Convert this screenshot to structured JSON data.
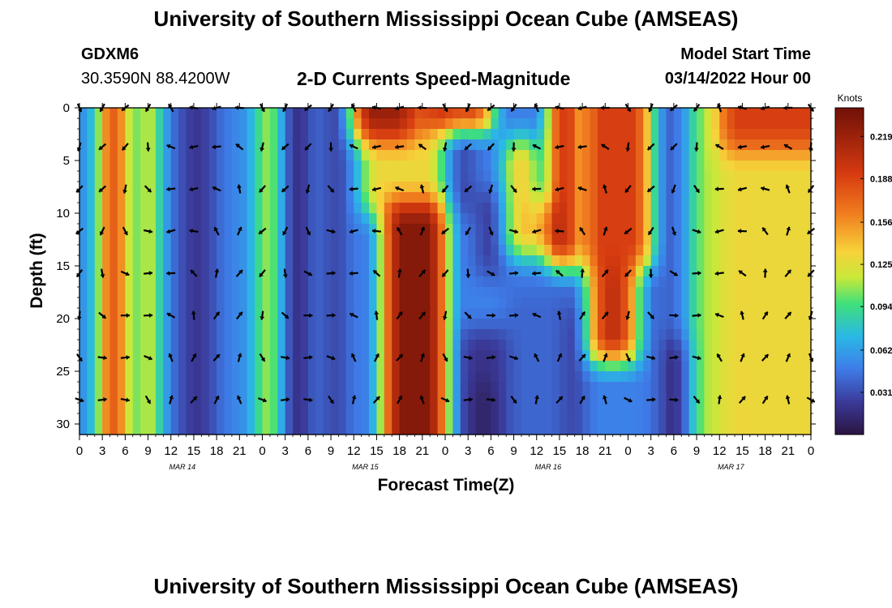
{
  "header": {
    "title": "University of Southern Mississippi Ocean Cube (AMSEAS)",
    "station": "GDXM6",
    "coords": "30.3590N  88.4200W",
    "subtitle": "2-D Currents Speed-Magnitude",
    "model_start_label": "Model Start Time",
    "model_start_value": "03/14/2022 Hour 00"
  },
  "footer": {
    "title": "University of Southern Mississippi Ocean Cube (AMSEAS)"
  },
  "chart_data": {
    "type": "heatmap",
    "title": "2-D Currents Speed-Magnitude",
    "xlabel": "Forecast Time(Z)",
    "ylabel": "Depth (ft)",
    "x_ticks": [
      "0",
      "3",
      "6",
      "9",
      "12",
      "15",
      "18",
      "21",
      "0",
      "3",
      "6",
      "9",
      "12",
      "15",
      "18",
      "21",
      "0",
      "3",
      "6",
      "9",
      "12",
      "15",
      "18",
      "21",
      "0",
      "3",
      "6",
      "9",
      "12",
      "15",
      "18",
      "21",
      "0"
    ],
    "date_labels": [
      "MAR 14",
      "MAR 15",
      "MAR 16",
      "MAR 17"
    ],
    "y_ticks": [
      "0",
      "5",
      "10",
      "15",
      "20",
      "25",
      "30"
    ],
    "y_tick_values": [
      0,
      5,
      10,
      15,
      20,
      25,
      30
    ],
    "ylim": [
      0,
      31
    ],
    "hours_range": [
      0,
      96
    ],
    "colorbar": {
      "label": "Knots",
      "ticks": [
        "0.219",
        "0.188",
        "0.156",
        "0.125",
        "0.094",
        "0.062",
        "0.031"
      ],
      "tick_values": [
        0.219,
        0.188,
        0.156,
        0.125,
        0.094,
        0.062,
        0.031
      ],
      "range": [
        0.0,
        0.24
      ]
    },
    "regions": [
      {
        "h": [
          3.5,
          6
        ],
        "d": [
          0,
          31
        ],
        "v": 0.21
      },
      {
        "h": [
          0,
          2
        ],
        "d": [
          0,
          31
        ],
        "v": 0.06
      },
      {
        "h": [
          8.5,
          9.5
        ],
        "d": [
          0,
          31
        ],
        "v": 0.16
      },
      {
        "h": [
          13,
          18
        ],
        "d": [
          0,
          31
        ],
        "v": 0.025
      },
      {
        "h": [
          14.5,
          16
        ],
        "d": [
          0,
          31
        ],
        "v": 0.02
      },
      {
        "h": [
          22,
          24
        ],
        "d": [
          0,
          31
        ],
        "v": 0.07
      },
      {
        "h": [
          24,
          26
        ],
        "d": [
          0,
          31
        ],
        "v": 0.14
      },
      {
        "h": [
          27.5,
          29.5
        ],
        "d": [
          0,
          31
        ],
        "v": 0.012
      },
      {
        "h": [
          32,
          35
        ],
        "d": [
          0,
          31
        ],
        "v": 0.025
      },
      {
        "h": [
          37,
          48
        ],
        "d": [
          0,
          10
        ],
        "v": 0.13
      },
      {
        "h": [
          36,
          44
        ],
        "d": [
          0,
          3
        ],
        "v": 0.22
      },
      {
        "h": [
          40,
          48
        ],
        "d": [
          9,
          31
        ],
        "v": 0.23
      },
      {
        "h": [
          45,
          54
        ],
        "d": [
          0,
          2
        ],
        "v": 0.21
      },
      {
        "h": [
          48,
          52
        ],
        "d": [
          2,
          10
        ],
        "v": 0.03
      },
      {
        "h": [
          52,
          56
        ],
        "d": [
          8,
          16
        ],
        "v": 0.025
      },
      {
        "h": [
          50,
          58
        ],
        "d": [
          21,
          31
        ],
        "v": 0.02
      },
      {
        "h": [
          52.5,
          54
        ],
        "d": [
          26,
          31
        ],
        "v": 0.005
      },
      {
        "h": [
          56,
          66
        ],
        "d": [
          17,
          31
        ],
        "v": 0.04
      },
      {
        "h": [
          56,
          64
        ],
        "d": [
          3,
          14
        ],
        "v": 0.14
      },
      {
        "h": [
          60.5,
          61.5
        ],
        "d": [
          0,
          9
        ],
        "v": 0.05
      },
      {
        "h": [
          62,
          65
        ],
        "d": [
          0,
          15
        ],
        "v": 0.23
      },
      {
        "h": [
          64,
          66
        ],
        "d": [
          19,
          31
        ],
        "v": 0.02
      },
      {
        "h": [
          66,
          75
        ],
        "d": [
          0,
          15
        ],
        "v": 0.19
      },
      {
        "h": [
          67,
          73
        ],
        "d": [
          15,
          24
        ],
        "v": 0.2
      },
      {
        "h": [
          75,
          80
        ],
        "d": [
          0,
          31
        ],
        "v": 0.04
      },
      {
        "h": [
          77,
          81
        ],
        "d": [
          22,
          31
        ],
        "v": 0.01
      },
      {
        "h": [
          80,
          84
        ],
        "d": [
          0,
          31
        ],
        "v": 0.11
      },
      {
        "h": [
          84,
          96
        ],
        "d": [
          0,
          4
        ],
        "v": 0.19
      },
      {
        "h": [
          84,
          96
        ],
        "d": [
          4,
          31
        ],
        "v": 0.13
      }
    ]
  }
}
